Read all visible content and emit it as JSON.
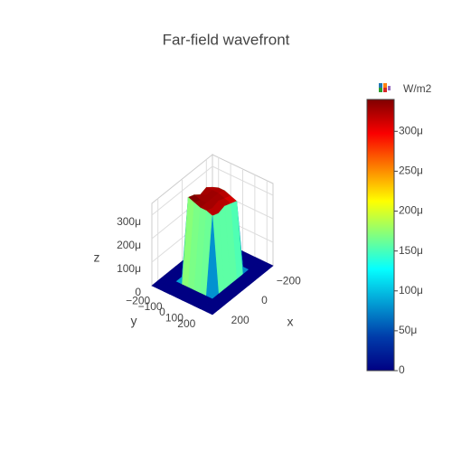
{
  "chart_data": {
    "type": "surface",
    "title": "Far-field wavefront",
    "xlabel": "x",
    "ylabel": "y",
    "zlabel": "z",
    "x": [
      -250,
      -200,
      -150,
      -100,
      -50,
      0,
      50,
      100,
      150,
      200,
      250
    ],
    "y": [
      -250,
      -200,
      -150,
      -100,
      -50,
      0,
      50,
      100,
      150,
      200,
      250
    ],
    "z": [
      [
        0,
        0,
        0,
        0,
        0,
        0,
        0,
        0,
        0,
        0,
        0
      ],
      [
        0,
        0,
        0,
        0,
        0,
        0,
        0,
        0,
        0,
        0,
        0
      ],
      [
        0,
        0,
        0,
        0,
        0,
        0,
        0,
        0,
        0,
        0,
        0
      ],
      [
        0,
        0,
        0,
        0.00031,
        0.00033,
        0.00032,
        0.00034,
        0.00035,
        0,
        0,
        0
      ],
      [
        0,
        0,
        0,
        0.00032,
        0.00033,
        0.00033,
        0.00033,
        0.00034,
        0,
        0,
        0
      ],
      [
        0,
        0,
        0,
        0.00032,
        0.00033,
        0.00033,
        0.00033,
        0.00033,
        0,
        0,
        0
      ],
      [
        0,
        0,
        0,
        0.00031,
        0.00032,
        0.00033,
        0.00032,
        0.00033,
        0,
        0,
        0
      ],
      [
        0,
        0,
        0,
        0.0003,
        0.00031,
        0.00032,
        0.00031,
        0.00032,
        0,
        0,
        0
      ],
      [
        0,
        0,
        0,
        0,
        0,
        0,
        0,
        0,
        0,
        0,
        0
      ],
      [
        0,
        0,
        0,
        0,
        0,
        0,
        0,
        0,
        0,
        0,
        0
      ],
      [
        0,
        0,
        0,
        0,
        0,
        0,
        0,
        0,
        0,
        0,
        0
      ]
    ],
    "xlim": [
      -250,
      250
    ],
    "ylim": [
      -250,
      250
    ],
    "zlim": [
      0,
      0.00035
    ],
    "xticks": [
      {
        "value": -200,
        "label": "−200"
      },
      0,
      200
    ],
    "yticks": [
      {
        "value": -200,
        "label": "−200"
      },
      {
        "value": -100,
        "label": "−100"
      },
      0,
      100,
      200
    ],
    "zticks": [
      0,
      {
        "value": 0.0001,
        "label": "100μ"
      },
      {
        "value": 0.0002,
        "label": "200μ"
      },
      {
        "value": 0.0003,
        "label": "300μ"
      }
    ],
    "colorbar": {
      "title": "W/m2",
      "clim": [
        0,
        0.00034
      ],
      "ticks": [
        0,
        {
          "value": 5e-05,
          "label": "50μ"
        },
        {
          "value": 0.0001,
          "label": "100μ"
        },
        {
          "value": 0.00015,
          "label": "150μ"
        },
        {
          "value": 0.0002,
          "label": "200μ"
        },
        {
          "value": 0.00025,
          "label": "250μ"
        },
        {
          "value": 0.0003,
          "label": "300μ"
        }
      ]
    },
    "colorscale": [
      [
        0,
        "#000083"
      ],
      [
        0.125,
        "#003caa"
      ],
      [
        0.375,
        "#05ffff"
      ],
      [
        0.625,
        "#ffff00"
      ],
      [
        0.875,
        "#fa0000"
      ],
      [
        1,
        "#800000"
      ]
    ],
    "grid": true
  }
}
